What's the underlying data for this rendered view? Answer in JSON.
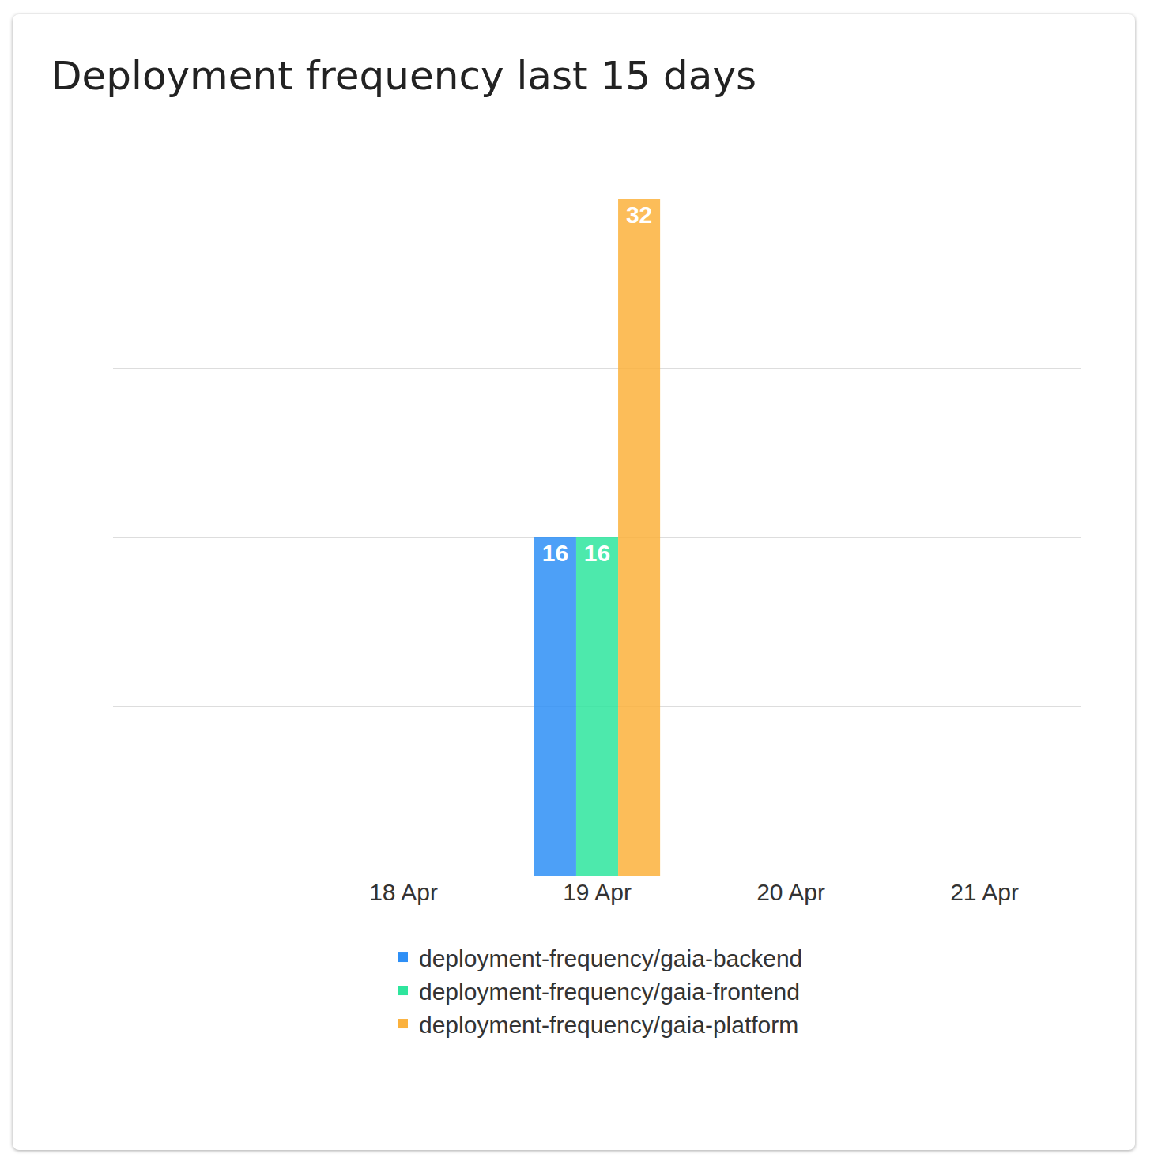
{
  "chart_data": {
    "type": "bar",
    "title": "Deployment frequency last 15 days",
    "categories": [
      null,
      "18 Apr",
      "19 Apr",
      "20 Apr",
      "21 Apr"
    ],
    "series": [
      {
        "name": "deployment-frequency/gaia-backend",
        "color": "#2e8ff6",
        "values": [
          null,
          null,
          16,
          null,
          null
        ]
      },
      {
        "name": "deployment-frequency/gaia-frontend",
        "color": "#2ee59d",
        "values": [
          null,
          null,
          16,
          null,
          null
        ]
      },
      {
        "name": "deployment-frequency/gaia-platform",
        "color": "#fbb13c",
        "values": [
          null,
          null,
          32,
          null,
          null
        ]
      }
    ],
    "ylim": [
      0,
      32
    ],
    "yticks": [
      0,
      8,
      16,
      24,
      32
    ],
    "grid": true,
    "data_labels": true,
    "tick_labels": "x",
    "legend": "bottom"
  }
}
